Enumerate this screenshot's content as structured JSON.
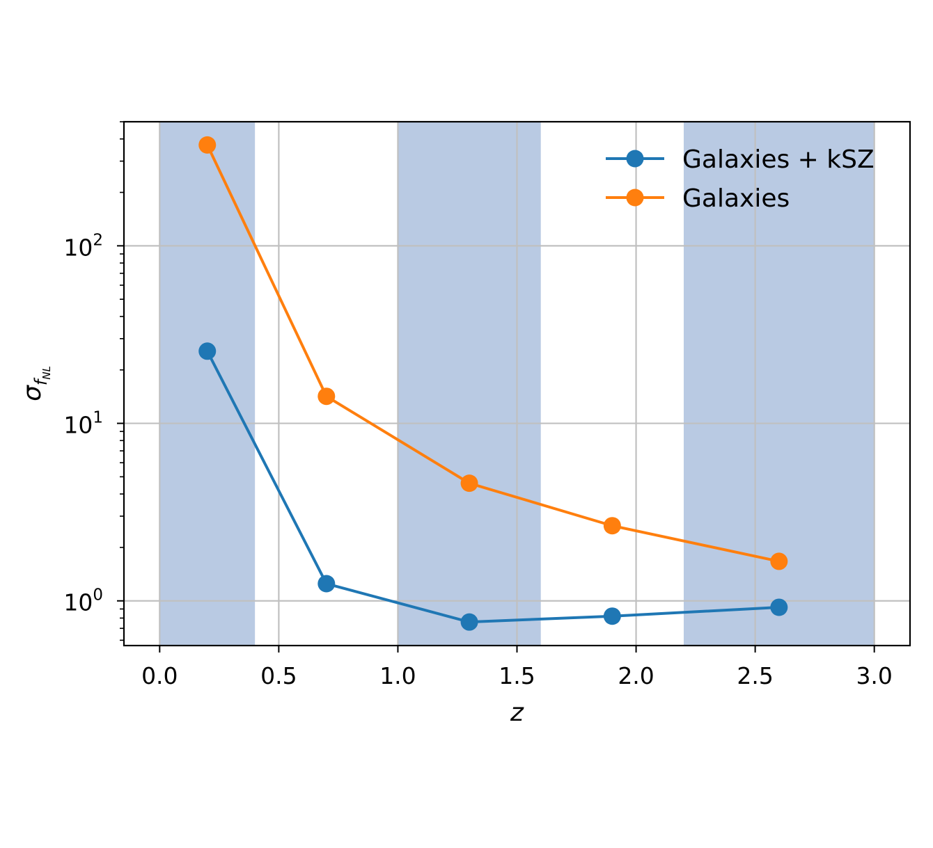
{
  "chart_data": {
    "type": "line",
    "x_axis": {
      "label": "z",
      "range": [
        -0.15,
        3.15
      ],
      "ticks": [
        0.0,
        0.5,
        1.0,
        1.5,
        2.0,
        2.5,
        3.0
      ],
      "tick_labels": [
        "0.0",
        "0.5",
        "1.0",
        "1.5",
        "2.0",
        "2.5",
        "3.0"
      ]
    },
    "y_axis": {
      "label_base": "σ",
      "label_sub": "f",
      "label_subsub": "NL",
      "scale": "log",
      "range": [
        0.56,
        500
      ],
      "ticks": [
        1,
        10,
        100
      ],
      "tick_labels": [
        {
          "base": "10",
          "exp": "0"
        },
        {
          "base": "10",
          "exp": "1"
        },
        {
          "base": "10",
          "exp": "2"
        }
      ]
    },
    "grid": true,
    "shaded_bands": [
      [
        0.0,
        0.4
      ],
      [
        1.0,
        1.6
      ],
      [
        2.2,
        3.0
      ]
    ],
    "shaded_color": "#b9cae3",
    "legend_position": "upper right",
    "series": [
      {
        "name": "Galaxies + kSZ",
        "color": "#1f77b4",
        "x": [
          0.2,
          0.7,
          1.3,
          1.9,
          2.6
        ],
        "y": [
          25.5,
          1.25,
          0.76,
          0.82,
          0.92
        ]
      },
      {
        "name": "Galaxies",
        "color": "#ff7f0e",
        "x": [
          0.2,
          0.7,
          1.3,
          1.9,
          2.6
        ],
        "y": [
          370,
          14.2,
          4.6,
          2.65,
          1.67
        ]
      }
    ]
  }
}
